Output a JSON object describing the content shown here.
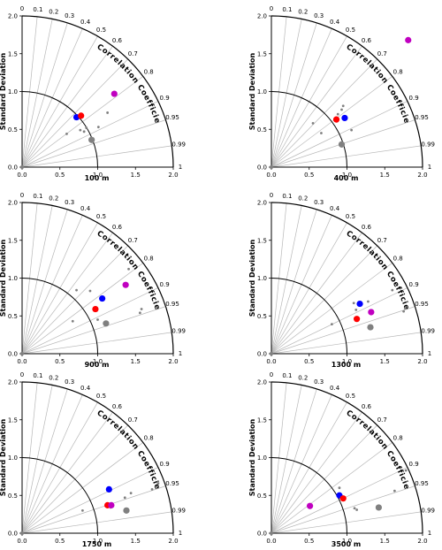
{
  "chart_data": [
    {
      "type": "scatter",
      "subtype": "taylor-diagram",
      "label": "100 m",
      "ylabel": "Standard Deviation",
      "arc_label": "Correlation Coefficient",
      "std_ticks": [
        "0.0",
        "0.5",
        "1.0",
        "1.5",
        "2.0"
      ],
      "corr_ticks": [
        "0",
        "0.1",
        "0.2",
        "0.3",
        "0.4",
        "0.5",
        "0.6",
        "0.7",
        "0.8",
        "0.9",
        "0.95",
        "0.99",
        "1"
      ],
      "std_range": [
        0,
        2.0
      ],
      "reference_std": 1.0,
      "points": [
        {
          "x": 0.72,
          "y": 0.66,
          "color": "#0000ff",
          "size": "large"
        },
        {
          "x": 0.78,
          "y": 0.68,
          "color": "#ff0000",
          "size": "large"
        },
        {
          "x": 1.22,
          "y": 0.97,
          "color": "#c000c0",
          "size": "large"
        },
        {
          "x": 0.92,
          "y": 0.36,
          "color": "#808080",
          "size": "large"
        },
        {
          "x": 1.13,
          "y": 0.72,
          "color": "#808080",
          "size": "small"
        },
        {
          "x": 0.85,
          "y": 0.52,
          "color": "#808080",
          "size": "small"
        },
        {
          "x": 0.77,
          "y": 0.49,
          "color": "#808080",
          "size": "small"
        },
        {
          "x": 0.59,
          "y": 0.44,
          "color": "#808080",
          "size": "small"
        },
        {
          "x": 1.01,
          "y": 0.53,
          "color": "#808080",
          "size": "small"
        },
        {
          "x": 0.82,
          "y": 0.47,
          "color": "#808080",
          "size": "small"
        }
      ]
    },
    {
      "type": "scatter",
      "subtype": "taylor-diagram",
      "label": "400 m",
      "ylabel": "Standard Deviation",
      "arc_label": "Correlation Coefficient",
      "std_ticks": [
        "0.0",
        "0.5",
        "1.0",
        "1.5",
        "2.0"
      ],
      "corr_ticks": [
        "0",
        "0.1",
        "0.2",
        "0.3",
        "0.4",
        "0.5",
        "0.6",
        "0.7",
        "0.8",
        "0.9",
        "0.95",
        "0.99",
        "1"
      ],
      "std_range": [
        0,
        2.0
      ],
      "reference_std": 1.0,
      "points": [
        {
          "x": 0.97,
          "y": 0.65,
          "color": "#0000ff",
          "size": "large"
        },
        {
          "x": 0.86,
          "y": 0.63,
          "color": "#ff0000",
          "size": "large"
        },
        {
          "x": 1.81,
          "y": 1.68,
          "color": "#c000c0",
          "size": "large"
        },
        {
          "x": 0.93,
          "y": 0.3,
          "color": "#808080",
          "size": "large"
        },
        {
          "x": 0.95,
          "y": 0.81,
          "color": "#808080",
          "size": "small"
        },
        {
          "x": 0.93,
          "y": 0.76,
          "color": "#808080",
          "size": "small"
        },
        {
          "x": 0.55,
          "y": 0.58,
          "color": "#808080",
          "size": "small"
        },
        {
          "x": 0.66,
          "y": 0.45,
          "color": "#808080",
          "size": "small"
        },
        {
          "x": 1.06,
          "y": 0.49,
          "color": "#808080",
          "size": "small"
        },
        {
          "x": 0.88,
          "y": 0.7,
          "color": "#808080",
          "size": "small"
        }
      ]
    },
    {
      "type": "scatter",
      "subtype": "taylor-diagram",
      "label": "900 m",
      "ylabel": "Standard Deviation",
      "arc_label": "Correlation Coefficient",
      "std_ticks": [
        "0.0",
        "0.5",
        "1.0",
        "1.5",
        "2.0"
      ],
      "corr_ticks": [
        "0",
        "0.1",
        "0.2",
        "0.3",
        "0.4",
        "0.5",
        "0.6",
        "0.7",
        "0.8",
        "0.9",
        "0.95",
        "0.99",
        "1"
      ],
      "std_range": [
        0,
        2.0
      ],
      "reference_std": 1.0,
      "points": [
        {
          "x": 1.06,
          "y": 0.73,
          "color": "#0000ff",
          "size": "large"
        },
        {
          "x": 0.97,
          "y": 0.59,
          "color": "#ff0000",
          "size": "large"
        },
        {
          "x": 1.37,
          "y": 0.91,
          "color": "#c000c0",
          "size": "large"
        },
        {
          "x": 1.11,
          "y": 0.4,
          "color": "#808080",
          "size": "large"
        },
        {
          "x": 1.41,
          "y": 1.12,
          "color": "#808080",
          "size": "small"
        },
        {
          "x": 0.72,
          "y": 0.84,
          "color": "#808080",
          "size": "small"
        },
        {
          "x": 0.9,
          "y": 0.83,
          "color": "#808080",
          "size": "small"
        },
        {
          "x": 0.67,
          "y": 0.43,
          "color": "#808080",
          "size": "small"
        },
        {
          "x": 1.58,
          "y": 0.59,
          "color": "#808080",
          "size": "small"
        },
        {
          "x": 1.56,
          "y": 0.54,
          "color": "#808080",
          "size": "small"
        },
        {
          "x": 1.0,
          "y": 0.45,
          "color": "#808080",
          "size": "small"
        }
      ]
    },
    {
      "type": "scatter",
      "subtype": "taylor-diagram",
      "label": "1300 m",
      "ylabel": "Standard Deviation",
      "arc_label": "Correlation Coefficient",
      "std_ticks": [
        "0.0",
        "0.5",
        "1.0",
        "1.5",
        "2.0"
      ],
      "corr_ticks": [
        "0",
        "0.1",
        "0.2",
        "0.3",
        "0.4",
        "0.5",
        "0.6",
        "0.7",
        "0.8",
        "0.9",
        "0.95",
        "0.99",
        "1"
      ],
      "std_range": [
        0,
        2.0
      ],
      "reference_std": 1.0,
      "points": [
        {
          "x": 1.17,
          "y": 0.66,
          "color": "#0000ff",
          "size": "large"
        },
        {
          "x": 1.13,
          "y": 0.46,
          "color": "#ff0000",
          "size": "large"
        },
        {
          "x": 1.32,
          "y": 0.55,
          "color": "#c000c0",
          "size": "large"
        },
        {
          "x": 1.31,
          "y": 0.35,
          "color": "#808080",
          "size": "large"
        },
        {
          "x": 1.09,
          "y": 0.67,
          "color": "#808080",
          "size": "small"
        },
        {
          "x": 1.12,
          "y": 0.58,
          "color": "#808080",
          "size": "small"
        },
        {
          "x": 1.28,
          "y": 0.69,
          "color": "#808080",
          "size": "small"
        },
        {
          "x": 0.8,
          "y": 0.39,
          "color": "#808080",
          "size": "small"
        },
        {
          "x": 1.75,
          "y": 0.56,
          "color": "#808080",
          "size": "small"
        },
        {
          "x": 1.77,
          "y": 0.6,
          "color": "#808080",
          "size": "small"
        },
        {
          "x": 1.6,
          "y": 0.84,
          "color": "#808080",
          "size": "small"
        }
      ]
    },
    {
      "type": "scatter",
      "subtype": "taylor-diagram",
      "label": "1750 m",
      "ylabel": "Standard Deviation",
      "arc_label": "Correlation Coefficient",
      "std_ticks": [
        "0.0",
        "0.5",
        "1.0",
        "1.5",
        "2.0"
      ],
      "corr_ticks": [
        "0",
        "0.1",
        "0.2",
        "0.3",
        "0.4",
        "0.5",
        "0.6",
        "0.7",
        "0.8",
        "0.9",
        "0.95",
        "0.99",
        "1"
      ],
      "std_range": [
        0,
        2.0
      ],
      "reference_std": 1.0,
      "points": [
        {
          "x": 1.15,
          "y": 0.58,
          "color": "#0000ff",
          "size": "large"
        },
        {
          "x": 1.13,
          "y": 0.37,
          "color": "#ff0000",
          "size": "large"
        },
        {
          "x": 1.18,
          "y": 0.37,
          "color": "#c000c0",
          "size": "large"
        },
        {
          "x": 1.38,
          "y": 0.3,
          "color": "#808080",
          "size": "large"
        },
        {
          "x": 1.44,
          "y": 0.53,
          "color": "#808080",
          "size": "small"
        },
        {
          "x": 1.36,
          "y": 0.47,
          "color": "#808080",
          "size": "small"
        },
        {
          "x": 1.8,
          "y": 0.66,
          "color": "#808080",
          "size": "small"
        },
        {
          "x": 1.72,
          "y": 0.58,
          "color": "#808080",
          "size": "small"
        },
        {
          "x": 0.8,
          "y": 0.3,
          "color": "#808080",
          "size": "small"
        },
        {
          "x": 1.17,
          "y": 0.34,
          "color": "#808080",
          "size": "small"
        }
      ]
    },
    {
      "type": "scatter",
      "subtype": "taylor-diagram",
      "label": "3500 m",
      "ylabel": "Standard Deviation",
      "arc_label": "Correlation Coefficient",
      "std_ticks": [
        "0.0",
        "0.5",
        "1.0",
        "1.5",
        "2.0"
      ],
      "corr_ticks": [
        "0",
        "0.1",
        "0.2",
        "0.3",
        "0.4",
        "0.5",
        "0.6",
        "0.7",
        "0.8",
        "0.9",
        "0.95",
        "0.99",
        "1"
      ],
      "std_range": [
        0,
        2.0
      ],
      "reference_std": 1.0,
      "points": [
        {
          "x": 0.9,
          "y": 0.5,
          "color": "#0000ff",
          "size": "large"
        },
        {
          "x": 0.95,
          "y": 0.46,
          "color": "#ff0000",
          "size": "large"
        },
        {
          "x": 0.51,
          "y": 0.36,
          "color": "#c000c0",
          "size": "large"
        },
        {
          "x": 1.42,
          "y": 0.34,
          "color": "#808080",
          "size": "large"
        },
        {
          "x": 0.9,
          "y": 0.6,
          "color": "#808080",
          "size": "small"
        },
        {
          "x": 1.1,
          "y": 0.33,
          "color": "#808080",
          "size": "small"
        },
        {
          "x": 1.13,
          "y": 0.31,
          "color": "#808080",
          "size": "small"
        },
        {
          "x": 1.63,
          "y": 0.56,
          "color": "#808080",
          "size": "small"
        },
        {
          "x": 1.78,
          "y": 0.83,
          "color": "#808080",
          "size": "small"
        }
      ]
    }
  ]
}
